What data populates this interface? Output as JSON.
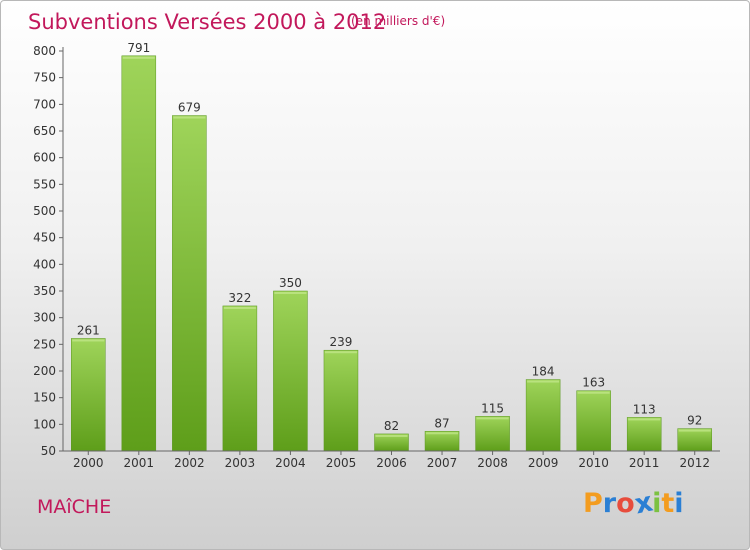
{
  "chart_data": {
    "type": "bar",
    "title": "Subventions Versées 2000 à 2012",
    "subtitle": "(en milliers d'€)",
    "categories": [
      "2000",
      "2001",
      "2002",
      "2003",
      "2004",
      "2005",
      "2006",
      "2007",
      "2008",
      "2009",
      "2010",
      "2011",
      "2012"
    ],
    "values": [
      261,
      791,
      679,
      322,
      350,
      239,
      82,
      87,
      115,
      184,
      163,
      113,
      92
    ],
    "value_labels": [
      "261",
      "791",
      "679",
      "322",
      "350",
      "239",
      "82",
      "87",
      "115",
      "184",
      "163",
      "113",
      "92"
    ],
    "y_ticks": [
      "50",
      "100",
      "150",
      "200",
      "250",
      "300",
      "350",
      "400",
      "450",
      "500",
      "550",
      "600",
      "650",
      "700",
      "750",
      "800"
    ],
    "ylim": [
      50,
      800
    ],
    "grid": false,
    "bar_color": "#7cc142"
  },
  "commune": "MAîCHE",
  "logo": {
    "text": "Proxiti",
    "letters": [
      "P",
      "r",
      "o",
      "x",
      "i",
      "t",
      "i"
    ],
    "colors": [
      "#f39c1f",
      "#2a7fd4",
      "#e74c3c",
      "#2a7fd4",
      "#7cc142",
      "#f39c1f",
      "#2a7fd4"
    ]
  }
}
